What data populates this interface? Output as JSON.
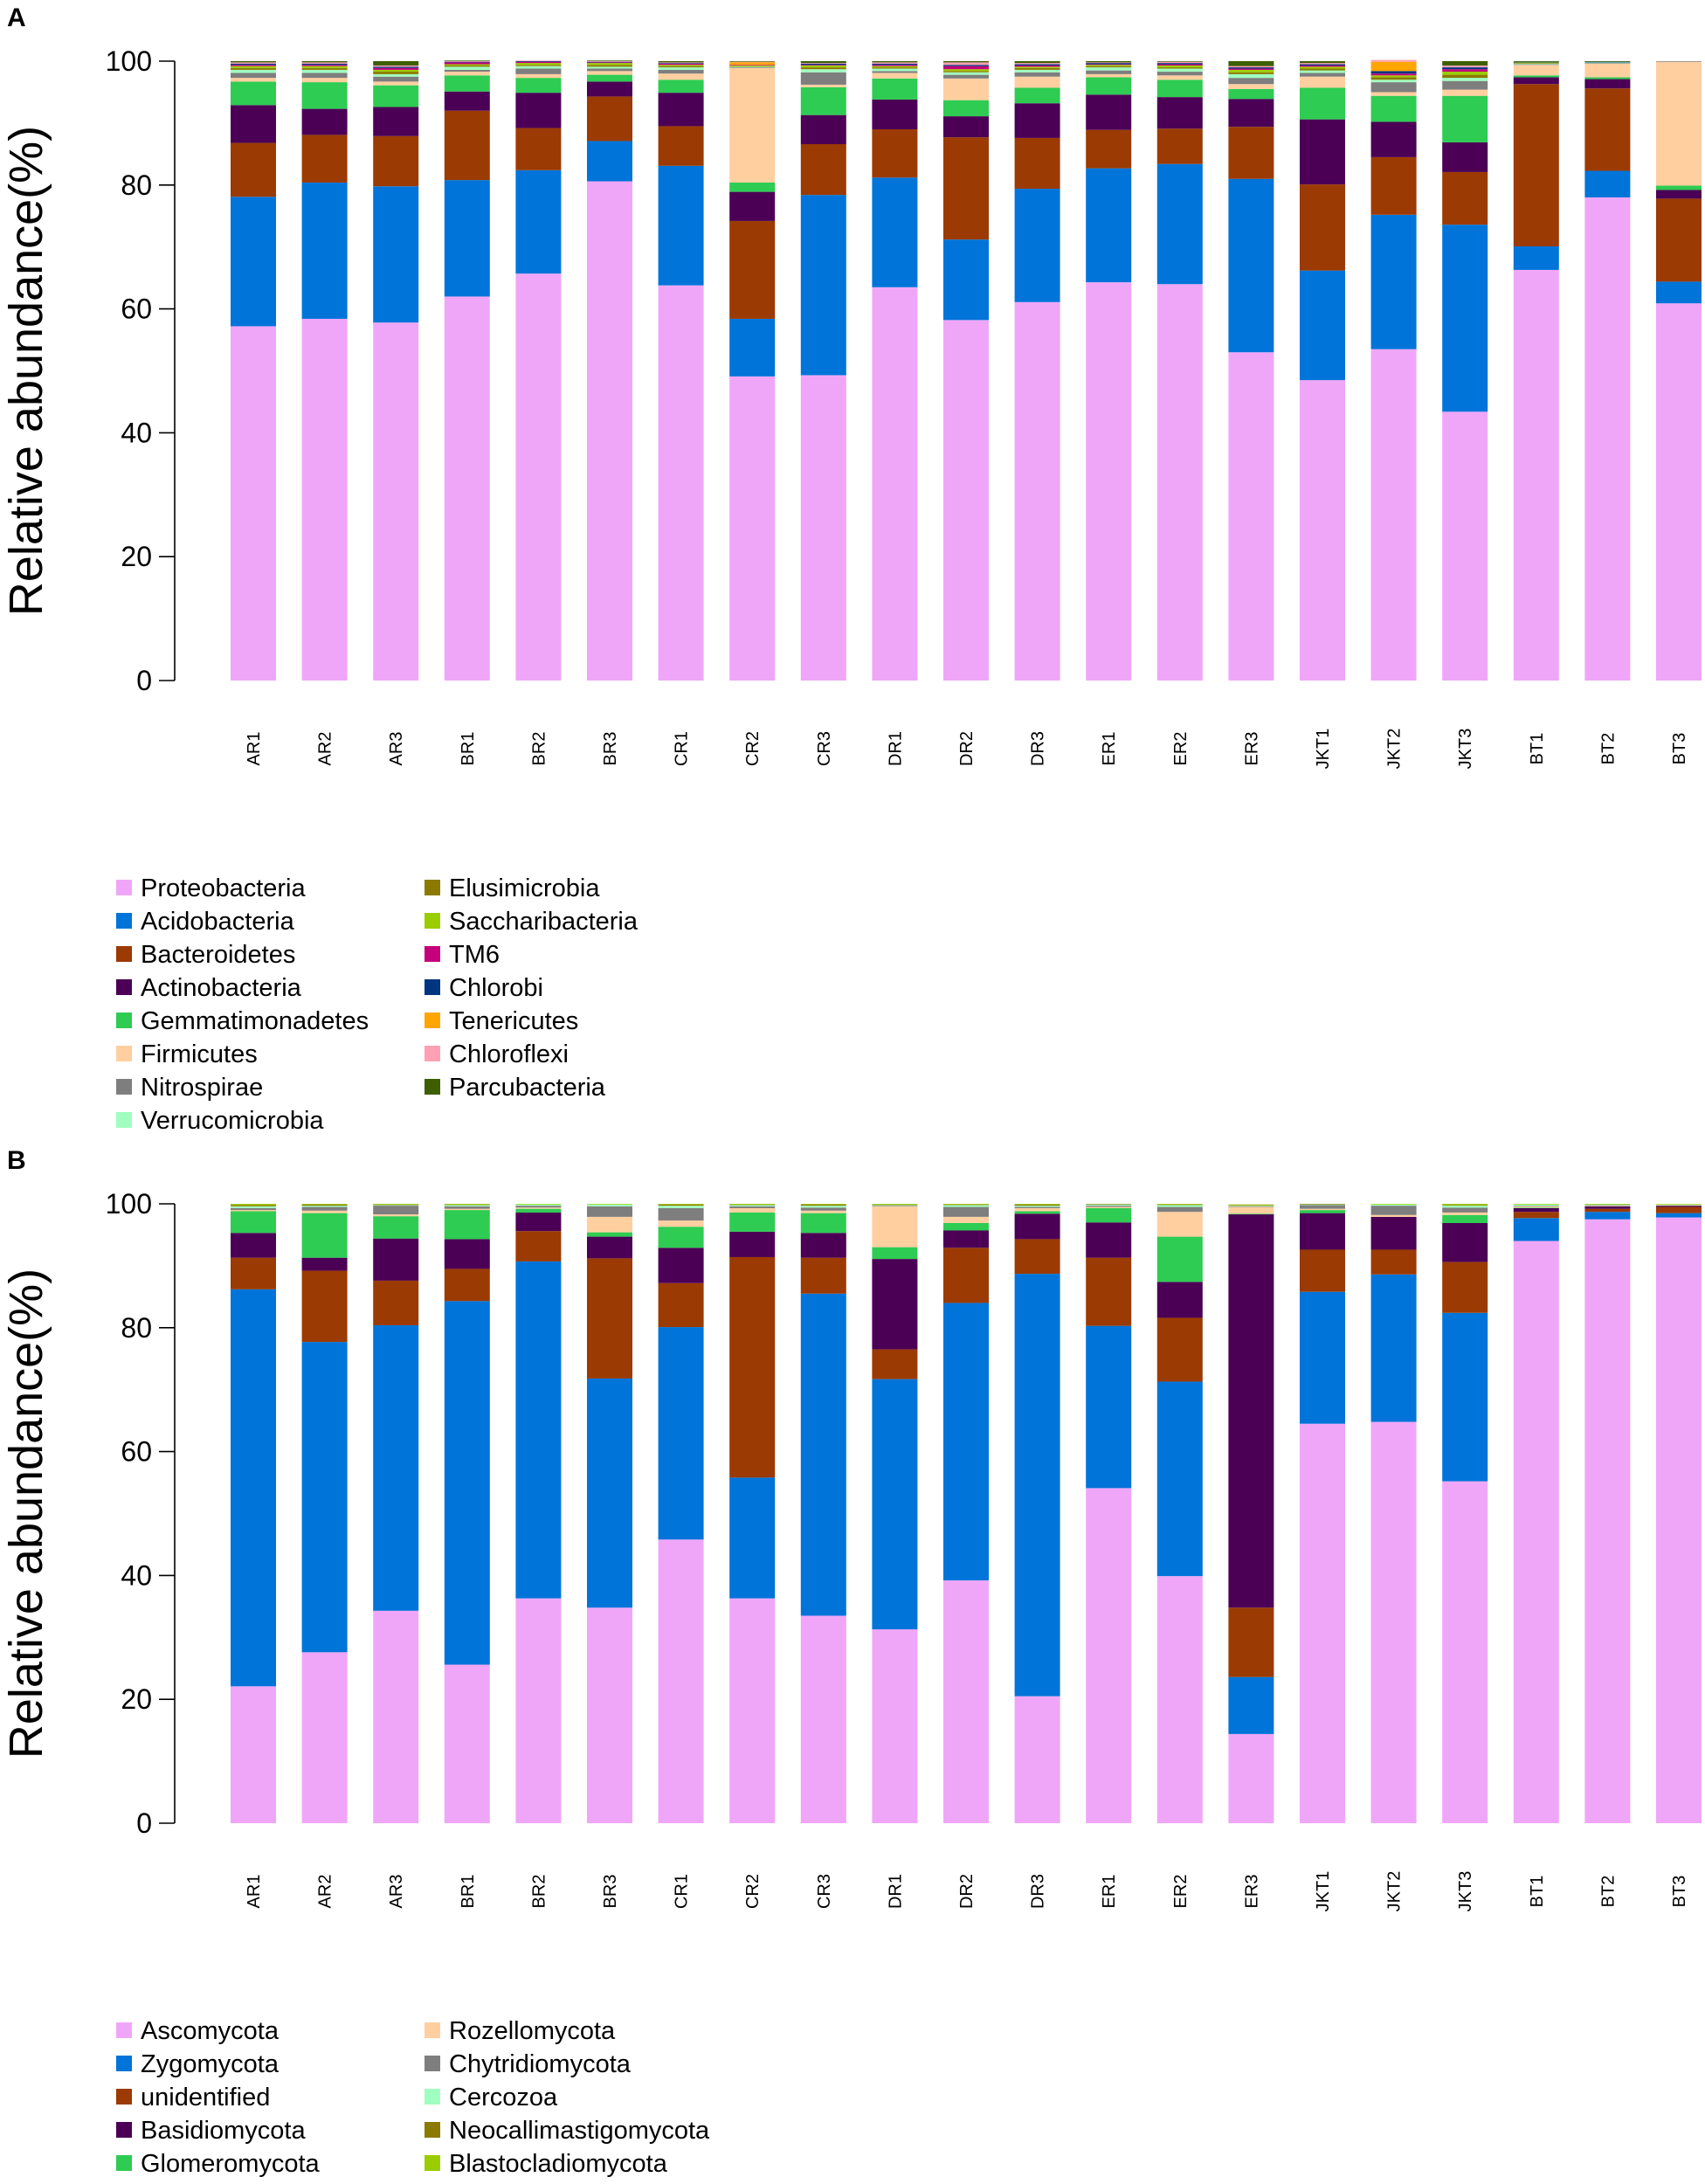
{
  "panel_labels": [
    "A",
    "B"
  ],
  "chart_data": [
    {
      "type": "bar",
      "stacked": true,
      "title": "",
      "xlabel": "",
      "ylabel": "Relative abundance(%)",
      "ylim": [
        0,
        100
      ],
      "yticks": [
        0,
        20,
        40,
        60,
        80,
        100
      ],
      "categories": [
        "AR1",
        "AR2",
        "AR3",
        "BR1",
        "BR2",
        "BR3",
        "CR1",
        "CR2",
        "CR3",
        "DR1",
        "DR2",
        "DR3",
        "ER1",
        "ER2",
        "ER3",
        "JKT1",
        "JKT2",
        "JKT3",
        "BT1",
        "BT2",
        "BT3"
      ],
      "legend_position": "bottom-left",
      "series": [
        {
          "name": "Proteobacteria",
          "color": "#F0A6F8",
          "values": [
            57.2,
            58.4,
            57.8,
            62.0,
            65.7,
            80.6,
            63.8,
            49.1,
            49.3,
            63.5,
            58.2,
            61.1,
            64.3,
            64.0,
            53.0,
            48.5,
            53.5,
            43.4,
            66.3,
            78.0,
            60.9
          ]
        },
        {
          "name": "Acidobacteria",
          "color": "#0074D9",
          "values": [
            20.9,
            22.0,
            22.0,
            18.8,
            16.7,
            6.5,
            19.3,
            9.3,
            29.1,
            17.7,
            13.0,
            18.3,
            18.4,
            19.4,
            28.0,
            17.7,
            21.7,
            30.2,
            3.8,
            4.3,
            3.5
          ]
        },
        {
          "name": "Bacteroidetes",
          "color": "#9B3A02",
          "values": [
            8.7,
            7.7,
            8.1,
            11.2,
            6.8,
            7.2,
            6.4,
            15.8,
            8.2,
            7.8,
            16.5,
            8.2,
            6.2,
            5.7,
            8.4,
            13.9,
            9.3,
            8.5,
            26.2,
            13.3,
            13.4
          ]
        },
        {
          "name": "Actinobacteria",
          "color": "#4B0055",
          "values": [
            6.1,
            4.2,
            4.7,
            3.1,
            5.7,
            2.4,
            5.4,
            4.7,
            4.7,
            4.8,
            3.4,
            5.6,
            5.7,
            5.1,
            4.5,
            10.5,
            5.7,
            4.8,
            1.1,
            1.5,
            1.4
          ]
        },
        {
          "name": "Gemmatimonadetes",
          "color": "#2ECC52",
          "values": [
            3.8,
            4.3,
            3.5,
            2.6,
            2.4,
            1.1,
            2.1,
            1.5,
            4.5,
            3.4,
            2.6,
            2.5,
            2.8,
            2.8,
            1.6,
            5.1,
            4.2,
            7.5,
            0.3,
            0.3,
            0.7
          ]
        },
        {
          "name": "Firmicutes",
          "color": "#FFCFA0",
          "values": [
            0.6,
            0.7,
            0.6,
            0.6,
            0.6,
            0.6,
            1.0,
            18.5,
            0.4,
            0.9,
            3.5,
            1.8,
            0.5,
            0.7,
            0.8,
            1.8,
            0.6,
            1.0,
            1.7,
            2.2,
            20.0
          ]
        },
        {
          "name": "Nitrospirae",
          "color": "#7E7E7E",
          "values": [
            0.8,
            0.8,
            0.8,
            0.3,
            0.9,
            0.4,
            0.6,
            0.1,
            2.0,
            0.3,
            0.6,
            0.7,
            0.6,
            0.6,
            1.0,
            0.6,
            1.6,
            1.4,
            0.1,
            0.1,
            0.1
          ]
        },
        {
          "name": "Verrucomicrobia",
          "color": "#A0FFC0",
          "values": [
            0.5,
            0.5,
            0.4,
            0.5,
            0.4,
            0.3,
            0.4,
            0.1,
            0.5,
            0.4,
            0.4,
            0.4,
            0.5,
            0.5,
            0.6,
            0.4,
            0.4,
            0.5,
            0.1,
            0.1,
            0.0
          ]
        },
        {
          "name": "Elusimicrobia",
          "color": "#8C7A00",
          "values": [
            0.3,
            0.3,
            0.4,
            0.2,
            0.2,
            0.3,
            0.2,
            0.1,
            0.3,
            0.2,
            0.2,
            0.3,
            0.2,
            0.2,
            0.3,
            0.3,
            0.4,
            0.5,
            0.1,
            0.0,
            0.0
          ]
        },
        {
          "name": "Saccharibacteria",
          "color": "#9ACD00",
          "values": [
            0.3,
            0.3,
            0.3,
            0.2,
            0.3,
            0.3,
            0.2,
            0.1,
            0.3,
            0.2,
            0.3,
            0.2,
            0.2,
            0.3,
            0.4,
            0.3,
            0.3,
            0.5,
            0.1,
            0.0,
            0.0
          ]
        },
        {
          "name": "TM6",
          "color": "#C4007A",
          "values": [
            0.2,
            0.2,
            0.3,
            0.3,
            0.2,
            0.1,
            0.2,
            0.1,
            0.1,
            0.2,
            0.5,
            0.2,
            0.1,
            0.2,
            0.2,
            0.2,
            0.3,
            0.4,
            0.0,
            0.0,
            0.0
          ]
        },
        {
          "name": "Chlorobi",
          "color": "#003580",
          "values": [
            0.2,
            0.2,
            0.2,
            0.1,
            0.1,
            0.1,
            0.1,
            0.0,
            0.2,
            0.2,
            0.2,
            0.2,
            0.2,
            0.2,
            0.2,
            0.2,
            0.4,
            0.3,
            0.1,
            0.1,
            0.0
          ]
        },
        {
          "name": "Tenericutes",
          "color": "#FFA500",
          "values": [
            0.0,
            0.0,
            0.0,
            0.0,
            0.0,
            0.0,
            0.0,
            0.4,
            0.0,
            0.0,
            0.0,
            0.0,
            0.0,
            0.0,
            0.0,
            0.0,
            1.5,
            0.0,
            0.0,
            0.0,
            0.0
          ]
        },
        {
          "name": "Chloroflexi",
          "color": "#FFA0B4",
          "values": [
            0.2,
            0.2,
            0.2,
            0.1,
            0.1,
            0.1,
            0.1,
            0.1,
            0.1,
            0.2,
            0.4,
            0.2,
            0.1,
            0.2,
            0.2,
            0.2,
            0.3,
            0.3,
            0.0,
            0.0,
            0.0
          ]
        },
        {
          "name": "Parcubacteria",
          "color": "#3D5F00",
          "values": [
            0.2,
            0.2,
            0.7,
            0.1,
            0.0,
            0.1,
            0.2,
            0.1,
            0.3,
            0.2,
            0.2,
            0.3,
            0.2,
            0.1,
            0.8,
            0.3,
            0.0,
            0.7,
            0.1,
            0.1,
            0.0
          ]
        }
      ]
    },
    {
      "type": "bar",
      "stacked": true,
      "title": "",
      "xlabel": "",
      "ylabel": "Relative abundance(%)",
      "ylim": [
        0,
        100
      ],
      "yticks": [
        0,
        20,
        40,
        60,
        80,
        100
      ],
      "categories": [
        "AR1",
        "AR2",
        "AR3",
        "BR1",
        "BR2",
        "BR3",
        "CR1",
        "CR2",
        "CR3",
        "DR1",
        "DR2",
        "DR3",
        "ER1",
        "ER2",
        "ER3",
        "JKT1",
        "JKT2",
        "JKT3",
        "BT1",
        "BT2",
        "BT3"
      ],
      "legend_position": "bottom-left",
      "series": [
        {
          "name": "Ascomycota",
          "color": "#F0A6F8",
          "values": [
            22.1,
            27.6,
            34.3,
            25.6,
            36.3,
            34.8,
            45.8,
            36.3,
            33.5,
            31.3,
            39.2,
            20.5,
            54.1,
            39.9,
            14.4,
            64.5,
            64.8,
            55.2,
            94.0,
            97.5,
            97.8
          ]
        },
        {
          "name": "Zygomycota",
          "color": "#0074D9",
          "values": [
            64.1,
            50.1,
            46.1,
            58.7,
            54.4,
            37.0,
            34.3,
            19.5,
            52.0,
            40.4,
            44.8,
            68.2,
            26.2,
            31.4,
            9.2,
            21.3,
            23.8,
            27.2,
            3.7,
            1.2,
            0.7
          ]
        },
        {
          "name": "unidentified",
          "color": "#9B3A02",
          "values": [
            5.1,
            11.5,
            7.2,
            5.2,
            4.9,
            19.4,
            7.1,
            35.6,
            5.8,
            4.8,
            8.9,
            5.6,
            11.0,
            10.3,
            11.2,
            6.8,
            4.0,
            8.2,
            1.0,
            0.5,
            1.0
          ]
        },
        {
          "name": "Basidiomycota",
          "color": "#4B0055",
          "values": [
            4.0,
            2.1,
            6.8,
            4.8,
            3.0,
            3.5,
            5.7,
            4.1,
            4.0,
            14.6,
            2.8,
            4.1,
            5.7,
            5.8,
            63.5,
            5.9,
            5.3,
            6.3,
            0.6,
            0.4,
            0.2
          ]
        },
        {
          "name": "Glomeromycota",
          "color": "#2ECC52",
          "values": [
            3.5,
            7.2,
            3.6,
            4.7,
            0.6,
            0.7,
            3.4,
            3.1,
            3.2,
            1.9,
            1.2,
            0.4,
            2.3,
            7.3,
            0.1,
            0.5,
            0.0,
            1.3,
            0.1,
            0.0,
            0.0
          ]
        },
        {
          "name": "Rozellomycota",
          "color": "#FFCFA0",
          "values": [
            0.2,
            0.4,
            0.3,
            0.2,
            0.2,
            2.5,
            1.0,
            0.7,
            0.4,
            6.6,
            1.0,
            0.5,
            0.2,
            4.0,
            1.1,
            0.2,
            0.3,
            0.4,
            0.2,
            0.1,
            0.1
          ]
        },
        {
          "name": "Chytridiomycota",
          "color": "#7E7E7E",
          "values": [
            0.3,
            0.6,
            1.4,
            0.4,
            0.3,
            1.7,
            2.0,
            0.3,
            0.5,
            0.1,
            1.6,
            0.2,
            0.2,
            0.8,
            0.1,
            0.6,
            1.5,
            0.8,
            0.1,
            0.1,
            0.0
          ]
        },
        {
          "name": "Cercozoa",
          "color": "#A0FFC0",
          "values": [
            0.3,
            0.2,
            0.1,
            0.2,
            0.2,
            0.3,
            0.4,
            0.2,
            0.3,
            0.1,
            0.3,
            0.2,
            0.2,
            0.3,
            0.1,
            0.1,
            0.2,
            0.3,
            0.2,
            0.1,
            0.1
          ]
        },
        {
          "name": "Neocallimastigomycota",
          "color": "#8C7A00",
          "values": [
            0.2,
            0.2,
            0.1,
            0.1,
            0.0,
            0.0,
            0.2,
            0.1,
            0.2,
            0.1,
            0.1,
            0.2,
            0.1,
            0.1,
            0.1,
            0.1,
            0.0,
            0.1,
            0.0,
            0.0,
            0.0
          ]
        },
        {
          "name": "Blastocladiomycota",
          "color": "#9ACD00",
          "values": [
            0.2,
            0.1,
            0.1,
            0.1,
            0.1,
            0.1,
            0.1,
            0.1,
            0.1,
            0.1,
            0.1,
            0.1,
            0.0,
            0.1,
            0.1,
            0.0,
            0.1,
            0.2,
            0.1,
            0.1,
            0.1
          ]
        }
      ]
    }
  ]
}
